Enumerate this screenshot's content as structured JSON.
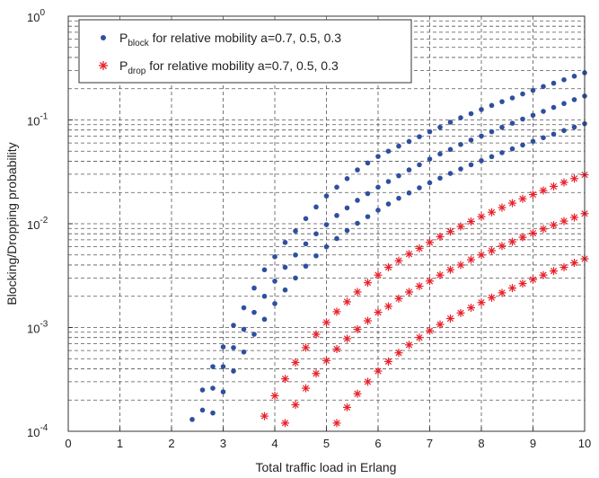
{
  "chart_data": {
    "type": "scatter",
    "xlabel": "Total traffic load in Erlang",
    "ylabel": "Blocking/Dropping probability",
    "xlim": [
      0,
      10
    ],
    "ylim": [
      0.0001,
      1
    ],
    "y_scale": "log",
    "grid": true,
    "grid_style": "dashed",
    "legend_placement": "top-left",
    "x_ticks": [
      "0",
      "1",
      "2",
      "3",
      "4",
      "5",
      "6",
      "7",
      "8",
      "9",
      "10"
    ],
    "y_ticks": [
      {
        "base": "10",
        "exp": "-4"
      },
      {
        "base": "10",
        "exp": "-3"
      },
      {
        "base": "10",
        "exp": "-2"
      },
      {
        "base": "10",
        "exp": "-1"
      },
      {
        "base": "10",
        "exp": "0"
      }
    ],
    "legend": [
      {
        "symbol": "P",
        "sub": "block",
        "text": " for relative mobility a=0.7, 0.5, 0.3",
        "marker": "dot",
        "color": "#2f4f9f"
      },
      {
        "symbol": "P",
        "sub": "drop",
        "text": " for relative mobility a=0.7, 0.5, 0.3",
        "marker": "star",
        "color": "#e8202a"
      }
    ],
    "series": [
      {
        "marker": "dot",
        "color": "#2f4f9f",
        "x": [
          2.4,
          2.6,
          2.8,
          3.0,
          3.2,
          3.4,
          3.6,
          3.8,
          4.0,
          4.2,
          4.4,
          4.6,
          4.8,
          5.0,
          5.2,
          5.4,
          5.6,
          5.8,
          6.0,
          6.2,
          6.4,
          6.6,
          6.8,
          7.0,
          7.2,
          7.4,
          7.6,
          7.8,
          8.0,
          8.2,
          8.4,
          8.6,
          8.8,
          9.0,
          9.2,
          9.4,
          9.6,
          9.8,
          10.0
        ],
        "y": [
          0.00013,
          0.00025,
          0.00042,
          0.00065,
          0.00105,
          0.00155,
          0.0024,
          0.0036,
          0.0048,
          0.0066,
          0.0085,
          0.0112,
          0.0145,
          0.0185,
          0.0225,
          0.0272,
          0.033,
          0.0385,
          0.0445,
          0.05,
          0.056,
          0.062,
          0.069,
          0.077,
          0.085,
          0.095,
          0.105,
          0.115,
          0.126,
          0.138,
          0.15,
          0.163,
          0.178,
          0.193,
          0.21,
          0.226,
          0.244,
          0.264,
          0.285
        ]
      },
      {
        "marker": "dot",
        "color": "#2f4f9f",
        "x": [
          2.6,
          2.8,
          3.0,
          3.2,
          3.4,
          3.6,
          3.8,
          4.0,
          4.2,
          4.4,
          4.6,
          4.8,
          5.0,
          5.2,
          5.4,
          5.6,
          5.8,
          6.0,
          6.2,
          6.4,
          6.6,
          6.8,
          7.0,
          7.2,
          7.4,
          7.6,
          7.8,
          8.0,
          8.2,
          8.4,
          8.6,
          8.8,
          9.0,
          9.2,
          9.4,
          9.6,
          9.8,
          10.0
        ],
        "y": [
          0.00016,
          0.00026,
          0.00042,
          0.00064,
          0.00096,
          0.0014,
          0.002,
          0.0028,
          0.0038,
          0.005,
          0.0064,
          0.008,
          0.0098,
          0.012,
          0.0142,
          0.0168,
          0.0195,
          0.0225,
          0.0255,
          0.029,
          0.033,
          0.037,
          0.042,
          0.047,
          0.052,
          0.058,
          0.064,
          0.07,
          0.077,
          0.085,
          0.093,
          0.102,
          0.111,
          0.121,
          0.132,
          0.144,
          0.157,
          0.17
        ]
      },
      {
        "marker": "dot",
        "color": "#2f4f9f",
        "x": [
          2.8,
          3.0,
          3.2,
          3.4,
          3.6,
          3.8,
          4.0,
          4.2,
          4.4,
          4.6,
          4.8,
          5.0,
          5.2,
          5.4,
          5.6,
          5.8,
          6.0,
          6.2,
          6.4,
          6.6,
          6.8,
          7.0,
          7.2,
          7.4,
          7.6,
          7.8,
          8.0,
          8.2,
          8.4,
          8.6,
          8.8,
          9.0,
          9.2,
          9.4,
          9.6,
          9.8,
          10.0
        ],
        "y": [
          0.00015,
          0.00024,
          0.00038,
          0.00058,
          0.00086,
          0.0012,
          0.0017,
          0.0023,
          0.003,
          0.0039,
          0.0049,
          0.006,
          0.0072,
          0.0086,
          0.0101,
          0.0117,
          0.0135,
          0.0155,
          0.0176,
          0.0198,
          0.0222,
          0.0248,
          0.0275,
          0.0305,
          0.0337,
          0.037,
          0.0405,
          0.0443,
          0.0484,
          0.0527,
          0.0573,
          0.0622,
          0.0674,
          0.073,
          0.079,
          0.0853,
          0.092
        ]
      },
      {
        "marker": "star",
        "color": "#e8202a",
        "x": [
          3.8,
          4.0,
          4.2,
          4.4,
          4.6,
          4.8,
          5.0,
          5.2,
          5.4,
          5.6,
          5.8,
          6.0,
          6.2,
          6.4,
          6.6,
          6.8,
          7.0,
          7.2,
          7.4,
          7.6,
          7.8,
          8.0,
          8.2,
          8.4,
          8.6,
          8.8,
          9.0,
          9.2,
          9.4,
          9.6,
          9.8,
          10.0
        ],
        "y": [
          0.00014,
          0.00022,
          0.00032,
          0.00046,
          0.00064,
          0.00086,
          0.00112,
          0.00142,
          0.00177,
          0.0022,
          0.0027,
          0.0032,
          0.0038,
          0.0044,
          0.0051,
          0.0058,
          0.0066,
          0.0075,
          0.0084,
          0.0094,
          0.0105,
          0.0117,
          0.0129,
          0.0143,
          0.0158,
          0.0174,
          0.0191,
          0.0209,
          0.0229,
          0.025,
          0.0272,
          0.0296
        ]
      },
      {
        "marker": "star",
        "color": "#e8202a",
        "x": [
          4.2,
          4.4,
          4.6,
          4.8,
          5.0,
          5.2,
          5.4,
          5.6,
          5.8,
          6.0,
          6.2,
          6.4,
          6.6,
          6.8,
          7.0,
          7.2,
          7.4,
          7.6,
          7.8,
          8.0,
          8.2,
          8.4,
          8.6,
          8.8,
          9.0,
          9.2,
          9.4,
          9.6,
          9.8,
          10.0
        ],
        "y": [
          0.00012,
          0.00018,
          0.00026,
          0.00036,
          0.00048,
          0.00062,
          0.00078,
          0.00096,
          0.00116,
          0.0014,
          0.0016,
          0.0019,
          0.0022,
          0.0025,
          0.0028,
          0.0032,
          0.0036,
          0.004,
          0.0045,
          0.005,
          0.0055,
          0.0061,
          0.0067,
          0.0074,
          0.0081,
          0.0089,
          0.0097,
          0.0106,
          0.0115,
          0.0125
        ]
      },
      {
        "marker": "star",
        "color": "#e8202a",
        "x": [
          5.2,
          5.4,
          5.6,
          5.8,
          6.0,
          6.2,
          6.4,
          6.6,
          6.8,
          7.0,
          7.2,
          7.4,
          7.6,
          7.8,
          8.0,
          8.2,
          8.4,
          8.6,
          8.8,
          9.0,
          9.2,
          9.4,
          9.6,
          9.8,
          10.0
        ],
        "y": [
          0.00012,
          0.00017,
          0.00023,
          0.0003,
          0.00038,
          0.00047,
          0.00057,
          0.00068,
          0.0008,
          0.00093,
          0.00107,
          0.00122,
          0.00138,
          0.00155,
          0.00174,
          0.00194,
          0.00216,
          0.0024,
          0.00265,
          0.0029,
          0.0032,
          0.0035,
          0.0038,
          0.0042,
          0.0046
        ]
      }
    ]
  }
}
